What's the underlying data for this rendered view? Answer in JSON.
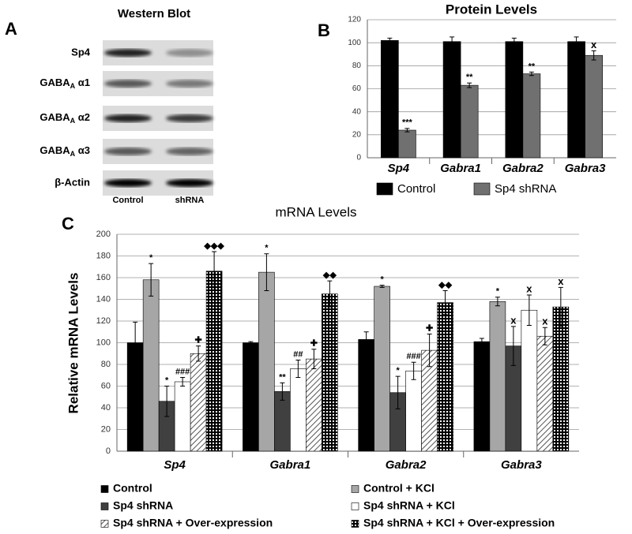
{
  "chart_data": [
    {
      "type": "blot",
      "panel_label": "A",
      "title": "Western Blot",
      "rows": [
        "Sp4",
        {
          "text": "GABA",
          "sub": "A",
          "tail": " α1"
        },
        {
          "text": "GABA",
          "sub": "A",
          "tail": " α2"
        },
        {
          "text": "GABA",
          "sub": "A",
          "tail": " α3"
        },
        "β-Actin"
      ],
      "columns": [
        "Control",
        "shRNA"
      ]
    },
    {
      "type": "bar",
      "panel_label": "B",
      "title": "Protein Levels",
      "categories": [
        "Sp4",
        "Gabra1",
        "Gabra2",
        "Gabra3"
      ],
      "series": [
        {
          "name": "Control",
          "color": "#000000",
          "values": [
            102,
            101,
            101,
            101
          ],
          "errors": [
            2,
            4,
            3,
            4
          ]
        },
        {
          "name": "Sp4 shRNA",
          "color": "#707070",
          "values": [
            24,
            63,
            73,
            89
          ],
          "errors": [
            1.5,
            2,
            1.5,
            4
          ],
          "markers": [
            "***",
            "**",
            "**",
            "x"
          ]
        }
      ],
      "ylim": [
        0,
        120
      ],
      "yticks": [
        0,
        20,
        40,
        60,
        80,
        100,
        120
      ],
      "grid": true,
      "legend": "bottom"
    },
    {
      "type": "bar",
      "panel_label": "C",
      "title": "mRNA Levels",
      "y_label": "Relative mRNA Levels",
      "categories": [
        "Sp4",
        "Gabra1",
        "Gabra2",
        "Gabra3"
      ],
      "series": [
        {
          "name": "Control",
          "color": "#000000",
          "values": [
            100,
            100,
            103,
            101
          ],
          "errors": [
            19,
            1,
            7,
            3
          ]
        },
        {
          "name": "Control + KCl",
          "color": "#a6a6a6",
          "values": [
            158,
            165,
            152,
            138
          ],
          "errors": [
            15,
            17,
            1,
            4
          ],
          "markers": [
            "*",
            "*",
            "*",
            "*"
          ]
        },
        {
          "name": "Sp4 shRNA",
          "color": "#404040",
          "values": [
            46,
            55,
            54,
            97
          ],
          "errors": [
            14,
            8,
            15,
            18
          ],
          "markers": [
            "*",
            "**",
            "*",
            "x"
          ]
        },
        {
          "name": "Sp4 shRNA + KCl",
          "color": "#ffffff",
          "values": [
            64,
            76,
            74,
            130
          ],
          "errors": [
            4,
            8,
            8,
            14
          ],
          "markers": [
            "###",
            "##",
            "###",
            "x"
          ]
        },
        {
          "name": "Sp4 shRNA + Over-expression",
          "color": "#ffffff",
          "pattern": "hatch",
          "values": [
            90,
            85,
            93,
            106
          ],
          "errors": [
            7,
            9,
            15,
            8
          ],
          "markers": [
            "✚",
            "✚",
            "✚",
            "x"
          ]
        },
        {
          "name": "Sp4 shRNA + KCl + Over-expression",
          "color": "#000000",
          "pattern": "grid",
          "values": [
            166,
            145,
            137,
            133
          ],
          "errors": [
            18,
            12,
            11,
            18
          ],
          "markers": [
            "◆◆◆",
            "◆◆",
            "◆◆",
            "x"
          ]
        }
      ],
      "ylim": [
        0,
        200
      ],
      "yticks": [
        0,
        20,
        40,
        60,
        80,
        100,
        120,
        140,
        160,
        180,
        200
      ],
      "grid": true,
      "legend": "bottom"
    }
  ]
}
